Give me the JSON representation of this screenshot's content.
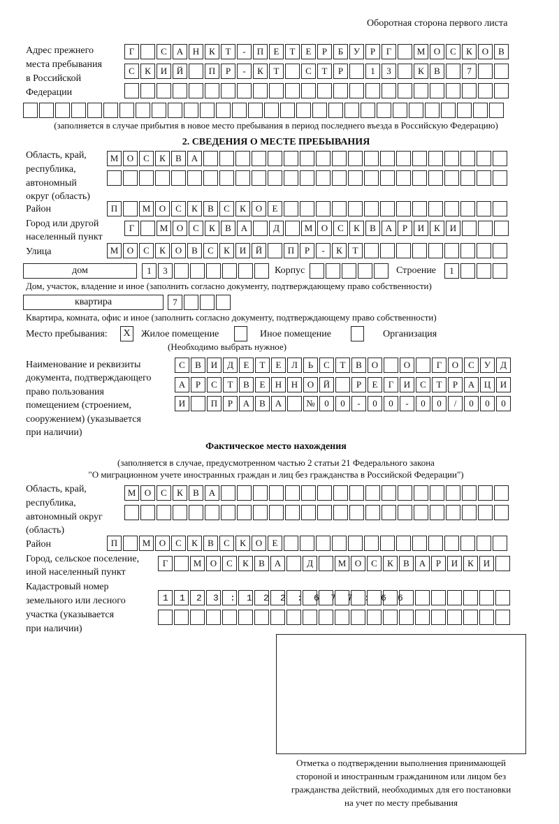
{
  "page_side": "Оборотная сторона первого листа",
  "prev_address": {
    "label": [
      "Адрес прежнего",
      "места пребывания",
      "в Российской",
      "Федерации"
    ],
    "rows": [
      "Г САНКТ-ПЕТЕРБУРГ МОСКОВ",
      "СКИЙ ПР-КТ СТР 13 КВ 7",
      "",
      ""
    ],
    "note": "(заполняется в случае прибытия в новое место пребывания в период последнего въезда в Российскую Федерацию)"
  },
  "section2": {
    "title": "2. СВЕДЕНИЯ О МЕСТЕ ПРЕБЫВАНИЯ",
    "region_label": [
      "Область, край,",
      "республика,",
      "автономный",
      "округ (область)"
    ],
    "region_rows": [
      "МОСКВА",
      ""
    ],
    "district_label": "Район",
    "district": "П МОСКВСКОЕ",
    "city_label": [
      "Город или другой",
      "населенный пункт"
    ],
    "city": "Г МОСКВА Д МОСКВАРИКИ",
    "street_label": "Улица",
    "street": "МОСКОВСКИЙ ПР-КТ",
    "house_type": "дом",
    "house": "13",
    "korpus_label": "Корпус",
    "korpus": "",
    "building_label": "Строение",
    "building": "1",
    "house_note": "Дом, участок, владение и иное (заполнить согласно документу, подтверждающему право собственности)",
    "apt_type": "квартира",
    "apt": "7",
    "apt_note": "Квартира, комната, офис и иное (заполнить согласно документу, подтверждающему право собственности)",
    "stay_label": "Место пребывания:",
    "stay_options": [
      {
        "label": "Жилое помещение",
        "mark": "X"
      },
      {
        "label": "Иное помещение",
        "mark": ""
      },
      {
        "label": "Организация",
        "mark": ""
      }
    ],
    "stay_note": "(Необходимо выбрать нужное)",
    "doc_label": [
      "Наименование и реквизиты",
      "документа, подтверждающего",
      "право пользования",
      "помещением (строением,",
      "сооружением) (указывается",
      "при наличии)"
    ],
    "doc_rows": [
      "СВИДЕТЕЛЬСТВО О ГОСУД",
      "АРСТВЕННОЙ РЕГИСТРАЦИ",
      "И ПРАВА №00-00-00/000"
    ]
  },
  "actual": {
    "title": "Фактическое место нахождения",
    "note1": "(заполняется в случае, предусмотренном частью 2 статьи 21 Федерального закона",
    "note2": "\"О миграционном учете иностранных граждан и лиц без гражданства в Российской Федерации\")",
    "region_label": [
      "Область, край,",
      "республика,",
      "автономный округ",
      "(область)"
    ],
    "region_rows": [
      "МОСКВА",
      ""
    ],
    "district_label": "Район",
    "district": "П МОСКВСКОЕ",
    "city_label": [
      "Город, сельское поселение,",
      "иной населенный пункт"
    ],
    "city": "Г МОСКВА Д МОСКВАРИКИ",
    "cadastre_label": [
      "Кадастровый номер",
      "земельного или лесного",
      "участка (указывается",
      "при наличии)"
    ],
    "cadastre_rows": [
      "1123:122:677:66",
      ""
    ]
  },
  "stamp_caption": [
    "Отметка о подтверждении выполнения принимающей",
    "стороной и иностранным гражданином или лицом без",
    "гражданства действий, необходимых для его постановки",
    "на учет по месту пребывания"
  ]
}
